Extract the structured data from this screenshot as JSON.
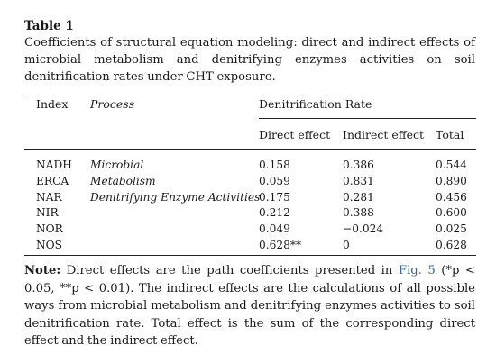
{
  "caption": {
    "title": "Table 1",
    "text": "Coefficients of structural equation modeling: direct and indirect effects of microbial metabolism and denitrifying enzymes activities on soil denitrification rates under CHT exposure."
  },
  "header": {
    "index": "Index",
    "process": "Process",
    "group": "Denitrification Rate",
    "direct": "Direct effect",
    "indirect": "Indirect effect",
    "total": "Total"
  },
  "rows": [
    {
      "index": "NADH",
      "process": "Microbial",
      "direct": "0.158",
      "indirect": "0.386",
      "total": "0.544"
    },
    {
      "index": "ERCA",
      "process": "Metabolism",
      "direct": "0.059",
      "indirect": "0.831",
      "total": "0.890"
    },
    {
      "index": "NAR",
      "process": "Denitrifying Enzyme Activities",
      "direct": "0.175",
      "indirect": "0.281",
      "total": "0.456"
    },
    {
      "index": "NIR",
      "process": "",
      "direct": "0.212",
      "indirect": "0.388",
      "total": "0.600"
    },
    {
      "index": "NOR",
      "process": "",
      "direct": "0.049",
      "indirect": "−0.024",
      "total": "0.025"
    },
    {
      "index": "NOS",
      "process": "",
      "direct": "0.628**",
      "indirect": "0",
      "total": "0.628"
    }
  ],
  "note": {
    "label": "Note:",
    "part1": " Direct effects are the path coefficients presented in ",
    "link": "Fig. 5",
    "part2": " (*p < 0.05, **p < 0.01). The indirect effects are the calculations of all possible ways from microbial metabolism and denitrifying enzymes activities to soil denitrification rate. Total effect is the sum of the corresponding direct effect and the indirect effect."
  }
}
